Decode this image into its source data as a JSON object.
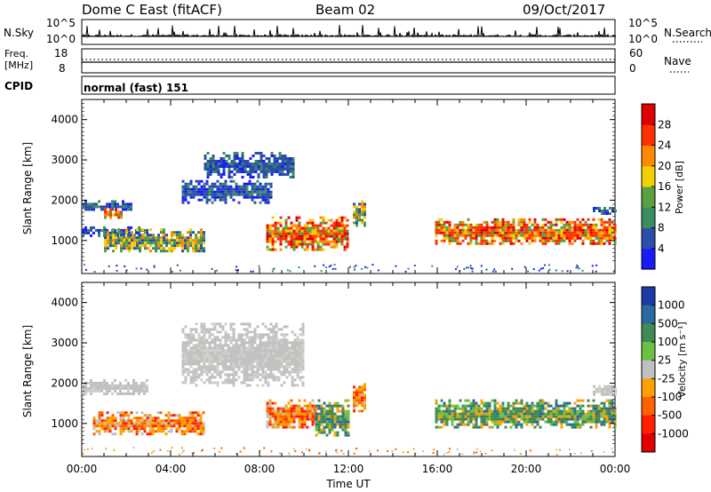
{
  "header": {
    "station": "Dome C East (fitACF)",
    "beam": "Beam 02",
    "date": "09/Oct/2017"
  },
  "info_panels": {
    "nsky_label": "N.Sky",
    "nsky_ticks": [
      "10^5",
      "10^0"
    ],
    "nsearch_label": "N.Search",
    "nsearch_ticks": [
      "10^5",
      "10^0"
    ],
    "freq_label_line1": "Freq.",
    "freq_label_line2": "[MHz]",
    "freq_ticks": [
      "18",
      "8"
    ],
    "nave_label": "Nave",
    "nave_ticks": [
      "60",
      "0"
    ],
    "cpid_label": "CPID",
    "cpid_value": "normal (fast) 151"
  },
  "chart_data": [
    {
      "type": "heatmap",
      "name": "power",
      "ylabel": "Slant Range [km]",
      "ylim": [
        180,
        4500
      ],
      "yticks": [
        "1000",
        "2000",
        "3000",
        "4000"
      ],
      "xlim_hours": [
        0,
        24
      ],
      "colorbar_label": "Power [dB]",
      "colorbar_ticks": [
        "4",
        "8",
        "12",
        "16",
        "20",
        "24",
        "28"
      ],
      "colorbar_colors": [
        "#1a1aff",
        "#2a4fa8",
        "#3b8c60",
        "#5aa040",
        "#f3d000",
        "#ff8a00",
        "#ff3000",
        "#e00000"
      ],
      "echo_regions": [
        {
          "t": [
            0.0,
            2.2
          ],
          "range": [
            1750,
            2000
          ],
          "level": "low"
        },
        {
          "t": [
            1.0,
            1.8
          ],
          "range": [
            1550,
            1800
          ],
          "level": "high"
        },
        {
          "t": [
            0.0,
            3.0
          ],
          "range": [
            1150,
            1350
          ],
          "level": "low"
        },
        {
          "t": [
            1.0,
            5.5
          ],
          "range": [
            750,
            1300
          ],
          "level": "medium"
        },
        {
          "t": [
            4.5,
            8.5
          ],
          "range": [
            1950,
            2500
          ],
          "level": "low"
        },
        {
          "t": [
            5.5,
            9.5
          ],
          "range": [
            2600,
            3200
          ],
          "level": "low"
        },
        {
          "t": [
            8.3,
            12.0
          ],
          "range": [
            800,
            1600
          ],
          "level": "high"
        },
        {
          "t": [
            12.2,
            12.7
          ],
          "range": [
            1400,
            2000
          ],
          "level": "medium"
        },
        {
          "t": [
            15.9,
            24.0
          ],
          "range": [
            900,
            1550
          ],
          "level": "high"
        },
        {
          "t": [
            23.0,
            24.0
          ],
          "range": [
            1700,
            1900
          ],
          "level": "low"
        }
      ]
    },
    {
      "type": "heatmap",
      "name": "velocity",
      "ylabel": "Slant Range [km]",
      "ylim": [
        180,
        4500
      ],
      "yticks": [
        "1000",
        "2000",
        "3000",
        "4000"
      ],
      "xlabel": "Time UT",
      "xticks": [
        "00:00",
        "04:00",
        "08:00",
        "12:00",
        "16:00",
        "20:00",
        "00:00"
      ],
      "colorbar_label": "Velocity [m s⁻¹]",
      "colorbar_ticks": [
        "1000",
        "500",
        "100",
        "25",
        "-25",
        "-100",
        "-500",
        "-1000"
      ],
      "colorbar_colors": [
        "#1a3ca8",
        "#2b6aa0",
        "#3f8a55",
        "#6cc040",
        "#c0c0c0",
        "#ffa000",
        "#ff6000",
        "#ff2000",
        "#e00000"
      ],
      "echo_regions": [
        {
          "t": [
            0.0,
            3.0
          ],
          "range": [
            1750,
            2100
          ],
          "level": "ground"
        },
        {
          "t": [
            0.5,
            5.5
          ],
          "range": [
            750,
            1300
          ],
          "level": "negative"
        },
        {
          "t": [
            4.5,
            10.0
          ],
          "range": [
            1950,
            3500
          ],
          "level": "ground"
        },
        {
          "t": [
            8.3,
            10.5
          ],
          "range": [
            900,
            1600
          ],
          "level": "negative"
        },
        {
          "t": [
            10.5,
            12.0
          ],
          "range": [
            700,
            1600
          ],
          "level": "positive"
        },
        {
          "t": [
            12.2,
            12.7
          ],
          "range": [
            1300,
            2000
          ],
          "level": "negative"
        },
        {
          "t": [
            15.9,
            24.0
          ],
          "range": [
            900,
            1600
          ],
          "level": "positive"
        },
        {
          "t": [
            23.0,
            24.0
          ],
          "range": [
            1700,
            1950
          ],
          "level": "ground"
        }
      ]
    }
  ]
}
